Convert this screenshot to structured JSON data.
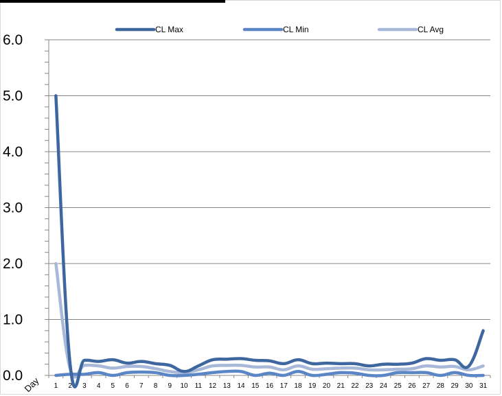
{
  "chart_data": {
    "type": "line",
    "xlabel": "Day",
    "ylabel": "",
    "ylim": [
      0,
      6
    ],
    "yticks": [
      "0.0",
      "1.0",
      "2.0",
      "3.0",
      "4.0",
      "5.0",
      "6.0"
    ],
    "categories": [
      "1",
      "2",
      "3",
      "4",
      "5",
      "6",
      "7",
      "8",
      "9",
      "10",
      "11",
      "12",
      "13",
      "14",
      "15",
      "16",
      "17",
      "18",
      "19",
      "20",
      "21",
      "22",
      "23",
      "24",
      "25",
      "26",
      "27",
      "28",
      "29",
      "30",
      "31"
    ],
    "legend_position": "top",
    "grid": "horizontal",
    "series": [
      {
        "name": "CL Max",
        "color": "#3e67a0",
        "values": [
          5.0,
          0.2,
          0.27,
          0.25,
          0.28,
          0.22,
          0.25,
          0.21,
          0.18,
          0.07,
          0.17,
          0.28,
          0.29,
          0.3,
          0.27,
          0.26,
          0.21,
          0.28,
          0.21,
          0.22,
          0.21,
          0.21,
          0.17,
          0.2,
          0.2,
          0.22,
          0.3,
          0.27,
          0.28,
          0.17,
          0.8
        ]
      },
      {
        "name": "CL Min",
        "color": "#5b86c6",
        "values": [
          0.0,
          0.02,
          0.02,
          0.05,
          0.0,
          0.05,
          0.06,
          0.05,
          0.0,
          0.0,
          0.02,
          0.05,
          0.07,
          0.07,
          0.0,
          0.04,
          0.0,
          0.07,
          0.0,
          0.02,
          0.05,
          0.04,
          0.0,
          0.0,
          0.05,
          0.05,
          0.05,
          0.0,
          0.05,
          0.0,
          0.0
        ]
      },
      {
        "name": "CL Avg",
        "color": "#a8b8d8",
        "values": [
          2.0,
          0.12,
          0.18,
          0.17,
          0.13,
          0.16,
          0.16,
          0.12,
          0.07,
          0.05,
          0.1,
          0.17,
          0.18,
          0.18,
          0.15,
          0.15,
          0.1,
          0.17,
          0.11,
          0.12,
          0.13,
          0.13,
          0.1,
          0.1,
          0.11,
          0.12,
          0.17,
          0.15,
          0.16,
          0.1,
          0.17
        ]
      }
    ]
  }
}
